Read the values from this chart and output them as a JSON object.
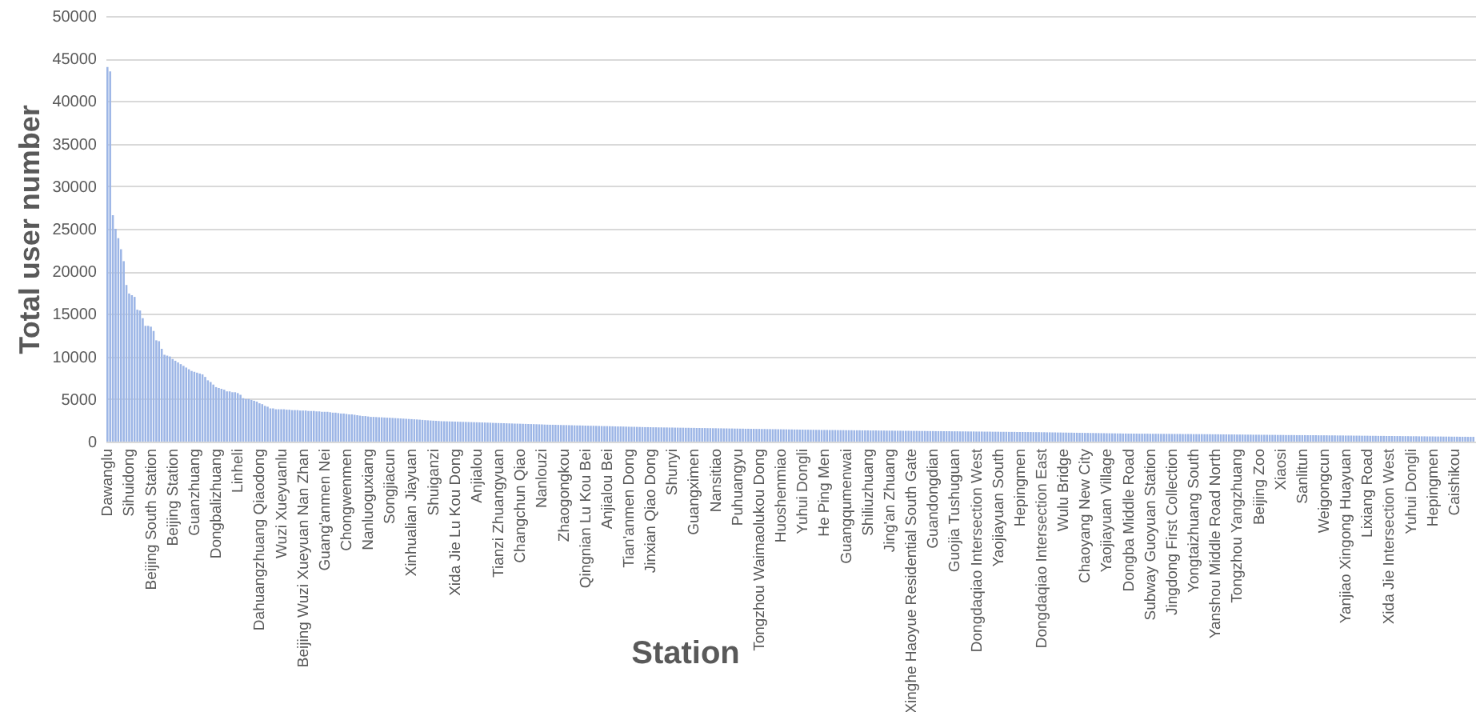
{
  "chart_data": {
    "type": "bar",
    "xlabel": "Station",
    "ylabel": "Total user number",
    "color": "#9db6e6",
    "ylim": [
      0,
      50000
    ],
    "yticks": [
      0,
      5000,
      10000,
      15000,
      20000,
      25000,
      30000,
      35000,
      40000,
      45000,
      50000
    ],
    "grid": "y",
    "categories": [
      "Dawanglu",
      null,
      null,
      null,
      null,
      null,
      null,
      null,
      "Sihuidong",
      null,
      null,
      null,
      null,
      null,
      null,
      null,
      "Beijing South Station",
      null,
      null,
      null,
      null,
      null,
      null,
      null,
      "Beijing Station",
      null,
      null,
      null,
      null,
      null,
      null,
      null,
      "Guanzhuang",
      null,
      null,
      null,
      null,
      null,
      null,
      null,
      "Dongbalizhuang",
      null,
      null,
      null,
      null,
      null,
      null,
      null,
      "Linheli",
      null,
      null,
      null,
      null,
      null,
      null,
      null,
      "Dahuangzhuang Qiaodong",
      null,
      null,
      null,
      null,
      null,
      null,
      null,
      "Wuzi Xueyuanlu",
      null,
      null,
      null,
      null,
      null,
      null,
      null,
      "Beijing Wuzi Xueyuan Nan Zhan",
      null,
      null,
      null,
      null,
      null,
      null,
      null,
      "Guang'anmen Nei",
      null,
      null,
      null,
      null,
      null,
      null,
      null,
      "Chongwenmen",
      null,
      null,
      null,
      null,
      null,
      null,
      null,
      "Nanluoguxiang",
      null,
      null,
      null,
      null,
      null,
      null,
      null,
      "Songjiacun",
      null,
      null,
      null,
      null,
      null,
      null,
      null,
      "Xinhualian Jiayuan",
      null,
      null,
      null,
      null,
      null,
      null,
      null,
      "Shuiganzi",
      null,
      null,
      null,
      null,
      null,
      null,
      null,
      "Xida Jie Lu Kou Dong",
      null,
      null,
      null,
      null,
      null,
      null,
      null,
      "Anjialou",
      null,
      null,
      null,
      null,
      null,
      null,
      null,
      "Tianzi Zhuangyuan",
      null,
      null,
      null,
      null,
      null,
      null,
      null,
      "Changchun Qiao",
      null,
      null,
      null,
      null,
      null,
      null,
      null,
      "Nanlouzi",
      null,
      null,
      null,
      null,
      null,
      null,
      null,
      "Zhaogongkou",
      null,
      null,
      null,
      null,
      null,
      null,
      null,
      "Qingnian Lu Kou Bei",
      null,
      null,
      null,
      null,
      null,
      null,
      null,
      "Anjialou Bei",
      null,
      null,
      null,
      null,
      null,
      null,
      null,
      "Tian'anmen Dong",
      null,
      null,
      null,
      null,
      null,
      null,
      null,
      "Jinxian Qiao Dong",
      null,
      null,
      null,
      null,
      null,
      null,
      null,
      "Shunyi",
      null,
      null,
      null,
      null,
      null,
      null,
      null,
      "Guangximen",
      null,
      null,
      null,
      null,
      null,
      null,
      null,
      "Nansitiao",
      null,
      null,
      null,
      null,
      null,
      null,
      null,
      "Puhuangyu",
      null,
      null,
      null,
      null,
      null,
      null,
      null,
      "Tongzhou Waimaolukou Dong",
      null,
      null,
      null,
      null,
      null,
      null,
      null,
      "Huoshenmiao",
      null,
      null,
      null,
      null,
      null,
      null,
      null,
      "Yuhui Dongli",
      null,
      null,
      null,
      null,
      null,
      null,
      null,
      "He Ping Men",
      null,
      null,
      null,
      null,
      null,
      null,
      null,
      "Guangqumenwai",
      null,
      null,
      null,
      null,
      null,
      null,
      null,
      "Shiliuzhuang",
      null,
      null,
      null,
      null,
      null,
      null,
      null,
      "Jing'an Zhuang",
      null,
      null,
      null,
      null,
      null,
      null,
      null,
      "Xinghe Haoyue Residential South Gate",
      null,
      null,
      null,
      null,
      null,
      null,
      null,
      "Guandongdian",
      null,
      null,
      null,
      null,
      null,
      null,
      null,
      "Guojia Tushuguan",
      null,
      null,
      null,
      null,
      null,
      null,
      null,
      "Dongdaqiao Intersection West",
      null,
      null,
      null,
      null,
      null,
      null,
      null,
      "Yaojiayuan South",
      null,
      null,
      null,
      null,
      null,
      null,
      null,
      "Hepingmen",
      null,
      null,
      null,
      null,
      null,
      null,
      null,
      "Dongdaqiao Intersection East",
      null,
      null,
      null,
      null,
      null,
      null,
      null,
      "Wulu Bridge",
      null,
      null,
      null,
      null,
      null,
      null,
      null,
      "Chaoyang New City",
      null,
      null,
      null,
      null,
      null,
      null,
      null,
      "Yaojiayuan Village",
      null,
      null,
      null,
      null,
      null,
      null,
      null,
      "Dongba Middle Road",
      null,
      null,
      null,
      null,
      null,
      null,
      null,
      "Subway Guoyuan Station",
      null,
      null,
      null,
      null,
      null,
      null,
      null,
      "Jingdong First Collection",
      null,
      null,
      null,
      null,
      null,
      null,
      null,
      "Yongtaizhuang South",
      null,
      null,
      null,
      null,
      null,
      null,
      null,
      "Yanshou Middle Road North",
      null,
      null,
      null,
      null,
      null,
      null,
      null,
      "Tongzhou Yangzhuang",
      null,
      null,
      null,
      null,
      null,
      null,
      null,
      "Beijing Zoo",
      null,
      null,
      null,
      null,
      null,
      null,
      null,
      "Xiaosi",
      null,
      null,
      null,
      null,
      null,
      null,
      null,
      "Sanlitun",
      null,
      null,
      null,
      null,
      null,
      null,
      null,
      "Weigongcun",
      null,
      null,
      null,
      null,
      null,
      null,
      null,
      "Yanjiao Xingong Huayuan",
      null,
      null,
      null,
      null,
      null,
      null,
      null,
      "Lixiang Road",
      null,
      null,
      null,
      null,
      null,
      null,
      null,
      "Xida Jie Intersection West",
      null,
      null,
      null,
      null,
      null,
      null,
      null,
      "Yuhui Dongli",
      null,
      null,
      null,
      null,
      null,
      null,
      null,
      "Hepingmen",
      null,
      null,
      null,
      null,
      null,
      null,
      null,
      "Caishikou",
      null,
      null,
      null,
      null,
      null,
      null,
      null
    ],
    "values": [
      44000,
      43500,
      26600,
      25000,
      23900,
      22600,
      21200,
      18400,
      17400,
      17200,
      17000,
      15500,
      15400,
      14500,
      13600,
      13600,
      13500,
      13000,
      11900,
      11800,
      10900,
      10200,
      10100,
      10000,
      9700,
      9500,
      9300,
      9100,
      8900,
      8700,
      8500,
      8300,
      8200,
      8100,
      8000,
      7900,
      7600,
      7200,
      7000,
      6700,
      6400,
      6300,
      6200,
      6100,
      5900,
      5900,
      5800,
      5800,
      5700,
      5500,
      5100,
      5000,
      5000,
      4900,
      4800,
      4700,
      4500,
      4400,
      4200,
      4100,
      3900,
      3900,
      3800,
      3800,
      3800,
      3800,
      3750,
      3750,
      3700,
      3700,
      3700,
      3650,
      3650,
      3650,
      3600,
      3600,
      3600,
      3550,
      3550,
      3500,
      3500,
      3500,
      3450,
      3400,
      3400,
      3350,
      3300,
      3300,
      3250,
      3200,
      3200,
      3150,
      3100,
      3050,
      3000,
      3000,
      2950,
      2900,
      2900,
      2880,
      2860,
      2850,
      2830,
      2810,
      2800,
      2780,
      2760,
      2740,
      2720,
      2700,
      2680,
      2660,
      2640,
      2620,
      2600,
      2580,
      2550,
      2520,
      2500,
      2480,
      2460,
      2440,
      2420,
      2400,
      2390,
      2380,
      2370,
      2360,
      2350,
      2340,
      2330,
      2320,
      2310,
      2300,
      2290,
      2280,
      2270,
      2260,
      2250,
      2240,
      2230,
      2220,
      2200,
      2190,
      2180,
      2170,
      2160,
      2150,
      2140,
      2130,
      2120,
      2110,
      2100,
      2090,
      2080,
      2070,
      2060,
      2050,
      2040,
      2030,
      2020,
      2000,
      1990,
      1980,
      1980,
      1970,
      1960,
      1950,
      1940,
      1940,
      1930,
      1920,
      1910,
      1900,
      1900,
      1890,
      1880,
      1870,
      1860,
      1860,
      1850,
      1840,
      1830,
      1820,
      1820,
      1810,
      1800,
      1790,
      1780,
      1780,
      1770,
      1760,
      1750,
      1740,
      1740,
      1730,
      1720,
      1710,
      1700,
      1700,
      1690,
      1680,
      1680,
      1670,
      1670,
      1660,
      1660,
      1650,
      1650,
      1640,
      1640,
      1630,
      1630,
      1620,
      1620,
      1610,
      1610,
      1600,
      1600,
      1590,
      1590,
      1580,
      1580,
      1570,
      1570,
      1560,
      1560,
      1550,
      1550,
      1540,
      1540,
      1530,
      1530,
      1520,
      1520,
      1510,
      1510,
      1500,
      1500,
      1490,
      1490,
      1480,
      1480,
      1470,
      1470,
      1460,
      1460,
      1450,
      1450,
      1440,
      1440,
      1430,
      1430,
      1420,
      1420,
      1410,
      1410,
      1400,
      1400,
      1390,
      1390,
      1380,
      1380,
      1370,
      1370,
      1370,
      1360,
      1360,
      1360,
      1350,
      1350,
      1350,
      1340,
      1340,
      1340,
      1330,
      1330,
      1330,
      1320,
      1320,
      1320,
      1310,
      1310,
      1310,
      1300,
      1300,
      1300,
      1290,
      1290,
      1290,
      1280,
      1280,
      1280,
      1270,
      1270,
      1270,
      1260,
      1260,
      1260,
      1250,
      1250,
      1250,
      1240,
      1240,
      1240,
      1230,
      1230,
      1230,
      1220,
      1220,
      1220,
      1210,
      1210,
      1210,
      1200,
      1200,
      1200,
      1190,
      1190,
      1190,
      1180,
      1180,
      1180,
      1170,
      1170,
      1170,
      1160,
      1160,
      1160,
      1150,
      1150,
      1150,
      1140,
      1140,
      1140,
      1130,
      1130,
      1130,
      1120,
      1120,
      1120,
      1110,
      1110,
      1110,
      1100,
      1100,
      1090,
      1090,
      1080,
      1080,
      1070,
      1070,
      1060,
      1060,
      1050,
      1050,
      1040,
      1040,
      1030,
      1030,
      1020,
      1020,
      1010,
      1010,
      1000,
      1000,
      990,
      990,
      980,
      980,
      970,
      970,
      960,
      960,
      950,
      950,
      940,
      940,
      940,
      940,
      930,
      930,
      930,
      930,
      920,
      920,
      920,
      920,
      910,
      910,
      910,
      910,
      900,
      900,
      900,
      900,
      890,
      890,
      890,
      890,
      880,
      880,
      880,
      880,
      870,
      870,
      870,
      860,
      860,
      860,
      850,
      850,
      850,
      840,
      840,
      840,
      830,
      830,
      830,
      820,
      820,
      820,
      810,
      810,
      810,
      800,
      800,
      800,
      790,
      790,
      790,
      780,
      780,
      780,
      770,
      770,
      770,
      770,
      760,
      760,
      760,
      760,
      750,
      750,
      750,
      750,
      740,
      740,
      740,
      740,
      730,
      730,
      730,
      720,
      720,
      720,
      710,
      710,
      710,
      700,
      700,
      700,
      690,
      690,
      690,
      680,
      680,
      680,
      670,
      670,
      670,
      660,
      660,
      660,
      650,
      650,
      650,
      640,
      640,
      640,
      630,
      630,
      630,
      620,
      620,
      620,
      610,
      610,
      610,
      600,
      600,
      600,
      590,
      590,
      590,
      580,
      580,
      580,
      570,
      570,
      570,
      560,
      560,
      560
    ]
  }
}
